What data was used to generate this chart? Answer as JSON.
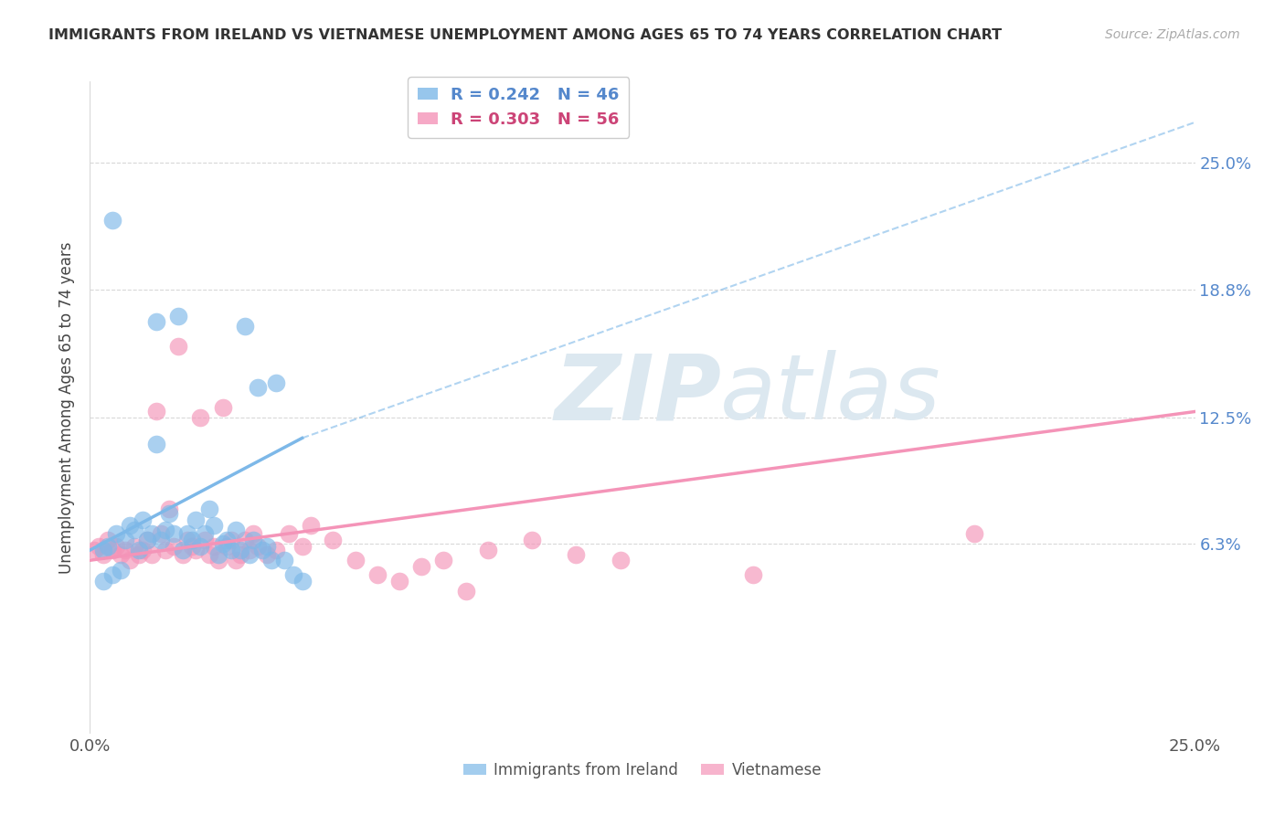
{
  "title": "IMMIGRANTS FROM IRELAND VS VIETNAMESE UNEMPLOYMENT AMONG AGES 65 TO 74 YEARS CORRELATION CHART",
  "source": "Source: ZipAtlas.com",
  "ylabel": "Unemployment Among Ages 65 to 74 years",
  "xlim": [
    0.0,
    0.25
  ],
  "ylim": [
    -0.03,
    0.29
  ],
  "xtick_labels": [
    "0.0%",
    "25.0%"
  ],
  "xtick_positions": [
    0.0,
    0.25
  ],
  "ytick_labels": [
    "6.3%",
    "12.5%",
    "18.8%",
    "25.0%"
  ],
  "ytick_positions": [
    0.063,
    0.125,
    0.188,
    0.25
  ],
  "legend_entries": [
    {
      "label": "R = 0.242   N = 46",
      "color": "#7db8e8"
    },
    {
      "label": "R = 0.303   N = 56",
      "color": "#f494b8"
    }
  ],
  "ireland_color": "#7db8e8",
  "vietnamese_color": "#f494b8",
  "ireland_scatter_x": [
    0.003,
    0.004,
    0.005,
    0.006,
    0.007,
    0.008,
    0.009,
    0.01,
    0.011,
    0.012,
    0.013,
    0.014,
    0.015,
    0.016,
    0.017,
    0.018,
    0.019,
    0.02,
    0.021,
    0.022,
    0.023,
    0.024,
    0.025,
    0.026,
    0.027,
    0.028,
    0.029,
    0.03,
    0.031,
    0.032,
    0.033,
    0.034,
    0.035,
    0.036,
    0.037,
    0.038,
    0.039,
    0.04,
    0.041,
    0.042,
    0.044,
    0.046,
    0.048,
    0.003,
    0.005,
    0.015
  ],
  "ireland_scatter_y": [
    0.06,
    0.062,
    0.222,
    0.068,
    0.05,
    0.065,
    0.072,
    0.07,
    0.06,
    0.075,
    0.065,
    0.068,
    0.172,
    0.065,
    0.07,
    0.078,
    0.068,
    0.175,
    0.06,
    0.068,
    0.065,
    0.075,
    0.062,
    0.068,
    0.08,
    0.072,
    0.058,
    0.063,
    0.065,
    0.06,
    0.07,
    0.06,
    0.17,
    0.058,
    0.065,
    0.14,
    0.06,
    0.062,
    0.055,
    0.142,
    0.055,
    0.048,
    0.045,
    0.045,
    0.048,
    0.112
  ],
  "vietnamese_scatter_x": [
    0.001,
    0.002,
    0.003,
    0.004,
    0.005,
    0.006,
    0.007,
    0.008,
    0.009,
    0.01,
    0.011,
    0.012,
    0.013,
    0.014,
    0.015,
    0.016,
    0.017,
    0.018,
    0.019,
    0.02,
    0.021,
    0.022,
    0.023,
    0.024,
    0.025,
    0.026,
    0.027,
    0.028,
    0.029,
    0.03,
    0.031,
    0.032,
    0.033,
    0.034,
    0.035,
    0.036,
    0.037,
    0.038,
    0.04,
    0.042,
    0.045,
    0.048,
    0.05,
    0.055,
    0.06,
    0.065,
    0.07,
    0.075,
    0.08,
    0.085,
    0.09,
    0.1,
    0.11,
    0.12,
    0.15,
    0.2
  ],
  "vietnamese_scatter_y": [
    0.06,
    0.062,
    0.058,
    0.065,
    0.06,
    0.062,
    0.058,
    0.06,
    0.055,
    0.062,
    0.058,
    0.06,
    0.065,
    0.058,
    0.128,
    0.068,
    0.06,
    0.08,
    0.062,
    0.16,
    0.058,
    0.065,
    0.062,
    0.06,
    0.125,
    0.065,
    0.058,
    0.062,
    0.055,
    0.13,
    0.062,
    0.065,
    0.055,
    0.058,
    0.065,
    0.06,
    0.068,
    0.062,
    0.058,
    0.06,
    0.068,
    0.062,
    0.072,
    0.065,
    0.055,
    0.048,
    0.045,
    0.052,
    0.055,
    0.04,
    0.06,
    0.065,
    0.058,
    0.055,
    0.048,
    0.068
  ],
  "ireland_line": {
    "x0": 0.0,
    "y0": 0.06,
    "x1": 0.048,
    "y1": 0.115,
    "x1_dash": 0.25,
    "y1_dash": 0.27
  },
  "vietnamese_line": {
    "x0": 0.0,
    "y0": 0.055,
    "x1": 0.25,
    "y1": 0.128
  },
  "watermark_zip": "ZIP",
  "watermark_atlas": "atlas",
  "background_color": "#ffffff",
  "grid_color": "#d8d8d8",
  "watermark_color": "#dce8f0"
}
